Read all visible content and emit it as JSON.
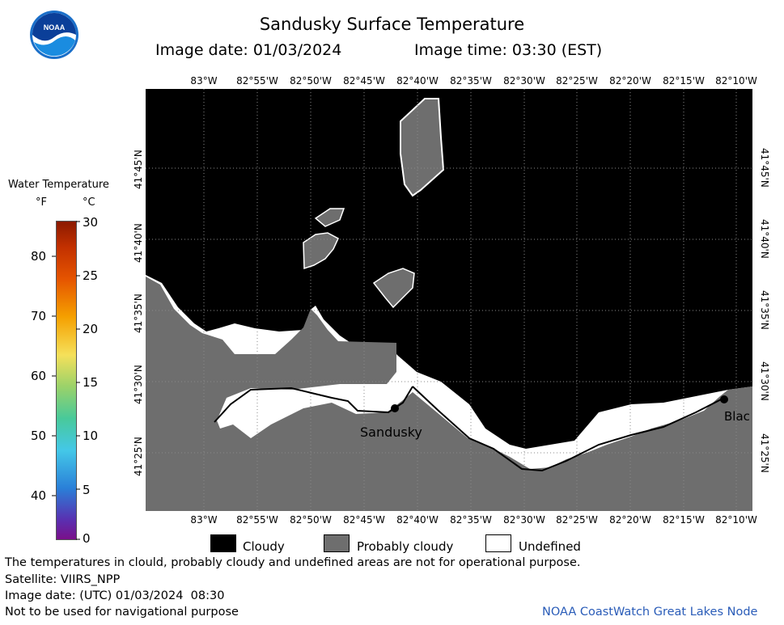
{
  "header": {
    "title": "Sandusky Surface Temperature",
    "image_date": "Image date: 01/03/2024",
    "image_time": "Image time: 03:30 (EST)"
  },
  "logo": {
    "text": "NOAA",
    "icon": "noaa-logo-icon"
  },
  "colorbar": {
    "title": "Water Temperature",
    "unit_f": "°F",
    "unit_c": "°C",
    "fahrenheit_ticks": [
      "80",
      "70",
      "60",
      "50",
      "40"
    ],
    "celsius_ticks": [
      "30",
      "25",
      "20",
      "15",
      "10",
      "5",
      "0"
    ]
  },
  "map": {
    "top_lon_labels": [
      "83°W",
      "82°55'W",
      "82°50'W",
      "82°45'W",
      "82°40'W",
      "82°35'W",
      "82°30'W",
      "82°25'W",
      "82°20'W",
      "82°15'W",
      "82°10'W"
    ],
    "bottom_lon_labels": [
      "83°W",
      "82°55'W",
      "82°50'W",
      "82°45'W",
      "82°40'W",
      "82°35'W",
      "82°30'W",
      "82°25'W",
      "82°20'W",
      "82°15'W",
      "82°10'W"
    ],
    "lat_labels": [
      "41°45'N",
      "41°40'N",
      "41°35'N",
      "41°30'N",
      "41°25'N"
    ],
    "city_sandusky": "Sandusky",
    "city_right": "Blac"
  },
  "legend": {
    "cloudy": "Cloudy",
    "probably_cloudy": "Probably cloudy",
    "undefined": "Undefined",
    "cloudy_color": "#000000",
    "probably_cloudy_color": "#6e6e6e",
    "undefined_color": "#ffffff"
  },
  "footer": {
    "disclaimer": "The temperatures in clould, probably cloudy and undefined areas are not for operational purpose.",
    "satellite": "Satellite: VIIRS_NPP",
    "utc_date": "Image date: (UTC) 01/03/2024  08:30",
    "nav_warning": "Not to be used for navigational purpose",
    "credit": "NOAA CoastWatch Great Lakes Node",
    "credit_color": "#2a5cb8"
  }
}
